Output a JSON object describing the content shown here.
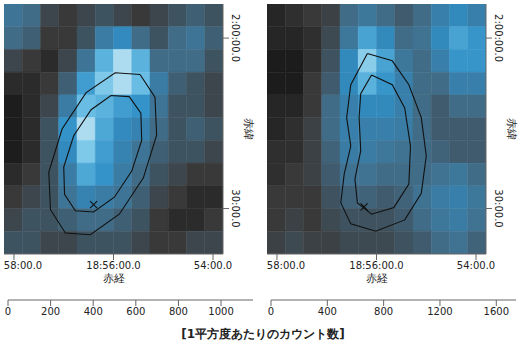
{
  "chart_data": [
    {
      "type": "heatmap",
      "x_label": "赤経",
      "y_label": "赤緯",
      "xlim": [
        3492,
        3228
      ],
      "xticks": [
        {
          "value": 3480,
          "label": "58:00.0"
        },
        {
          "value": 3360,
          "label": "18:56:00.0"
        },
        {
          "value": 3240,
          "label": "54:00.0"
        }
      ],
      "ylim": [
        82,
        126
      ],
      "yticks": [
        {
          "value": 120,
          "label": "2:00:00.0"
        },
        {
          "value": 90,
          "label": "30:00.0"
        }
      ],
      "x_edges": [
        3492,
        3470,
        3448,
        3426,
        3404,
        3382,
        3360,
        3338,
        3316,
        3294,
        3272,
        3250,
        3228
      ],
      "y_edges": [
        126,
        122,
        118,
        114,
        110,
        106,
        102,
        98,
        94,
        90,
        86,
        82
      ],
      "cells": [
        [
          450,
          400,
          250,
          200,
          250,
          300,
          250,
          200,
          250,
          300,
          350,
          300
        ],
        [
          400,
          350,
          200,
          200,
          300,
          500,
          600,
          400,
          300,
          400,
          450,
          350
        ],
        [
          250,
          200,
          150,
          250,
          450,
          800,
          1000,
          800,
          400,
          400,
          400,
          300
        ],
        [
          150,
          150,
          200,
          350,
          700,
          900,
          1000,
          850,
          500,
          350,
          300,
          250
        ],
        [
          100,
          150,
          250,
          500,
          850,
          800,
          700,
          650,
          450,
          300,
          300,
          250
        ],
        [
          100,
          150,
          300,
          650,
          1000,
          750,
          600,
          550,
          400,
          300,
          350,
          300
        ],
        [
          100,
          150,
          300,
          600,
          900,
          700,
          550,
          450,
          350,
          300,
          300,
          250
        ],
        [
          150,
          200,
          300,
          500,
          750,
          650,
          500,
          400,
          300,
          250,
          200,
          200
        ],
        [
          200,
          250,
          300,
          450,
          550,
          500,
          450,
          350,
          250,
          200,
          150,
          150
        ],
        [
          250,
          300,
          300,
          350,
          400,
          400,
          350,
          300,
          200,
          150,
          150,
          200
        ],
        [
          300,
          300,
          250,
          250,
          300,
          300,
          300,
          250,
          200,
          200,
          250,
          250
        ]
      ],
      "colorbar": {
        "range": [
          0,
          1150
        ],
        "ticks": [
          0,
          200,
          400,
          600,
          800,
          1000
        ]
      },
      "contours": [
        [
          [
            3328,
            113.6
          ],
          [
            3310,
            109.6
          ],
          [
            3308,
            102.9
          ],
          [
            3324,
            95.4
          ],
          [
            3353,
            89.0
          ],
          [
            3388,
            85.4
          ],
          [
            3418,
            85.7
          ],
          [
            3436,
            89.8
          ],
          [
            3438,
            96.4
          ],
          [
            3422,
            104.0
          ],
          [
            3393,
            110.4
          ],
          [
            3358,
            113.9
          ],
          [
            3328,
            113.6
          ]
        ],
        [
          [
            3341,
            109.7
          ],
          [
            3327,
            106.8
          ],
          [
            3326,
            102.0
          ],
          [
            3338,
            96.6
          ],
          [
            3359,
            92.0
          ],
          [
            3384,
            89.4
          ],
          [
            3406,
            89.6
          ],
          [
            3419,
            92.5
          ],
          [
            3420,
            97.3
          ],
          [
            3408,
            102.8
          ],
          [
            3387,
            107.4
          ],
          [
            3363,
            109.9
          ],
          [
            3341,
            109.7
          ]
        ]
      ],
      "markers": [
        {
          "x": 3384,
          "y": 90.7,
          "marker": "x"
        }
      ]
    },
    {
      "type": "heatmap",
      "x_label": "赤経",
      "y_label": "赤緯",
      "xlim": [
        3492,
        3228
      ],
      "xticks": [
        {
          "value": 3480,
          "label": "58:00.0"
        },
        {
          "value": 3360,
          "label": "18:56:00.0"
        },
        {
          "value": 3240,
          "label": "54:00.0"
        }
      ],
      "ylim": [
        82,
        126
      ],
      "yticks": [
        {
          "value": 120,
          "label": "2:00:00.0"
        },
        {
          "value": 90,
          "label": "30:00.0"
        }
      ],
      "x_edges": [
        3492,
        3470,
        3448,
        3426,
        3404,
        3382,
        3360,
        3338,
        3316,
        3294,
        3272,
        3250,
        3228
      ],
      "y_edges": [
        126,
        122,
        118,
        114,
        110,
        106,
        102,
        98,
        94,
        90,
        86,
        82
      ],
      "cells": [
        [
          200,
          250,
          300,
          350,
          600,
          700,
          600,
          500,
          600,
          800,
          900,
          800
        ],
        [
          200,
          200,
          250,
          400,
          700,
          1100,
          900,
          600,
          650,
          900,
          1100,
          1000
        ],
        [
          150,
          150,
          250,
          450,
          900,
          1400,
          1100,
          700,
          600,
          800,
          1000,
          1000
        ],
        [
          150,
          150,
          300,
          500,
          900,
          1200,
          1000,
          800,
          600,
          600,
          800,
          800
        ],
        [
          200,
          200,
          300,
          600,
          800,
          900,
          900,
          800,
          600,
          500,
          600,
          600
        ],
        [
          200,
          250,
          350,
          600,
          800,
          800,
          800,
          750,
          600,
          500,
          500,
          500
        ],
        [
          250,
          250,
          350,
          550,
          750,
          750,
          700,
          650,
          600,
          550,
          500,
          500
        ],
        [
          250,
          300,
          350,
          500,
          650,
          650,
          600,
          600,
          600,
          650,
          700,
          600
        ],
        [
          300,
          300,
          300,
          450,
          550,
          550,
          500,
          550,
          650,
          750,
          800,
          700
        ],
        [
          300,
          350,
          300,
          400,
          450,
          450,
          450,
          500,
          600,
          700,
          750,
          650
        ],
        [
          350,
          400,
          350,
          350,
          400,
          400,
          400,
          450,
          500,
          600,
          650,
          550
        ]
      ],
      "colorbar": {
        "range": [
          0,
          1740
        ],
        "ticks": [
          0,
          400,
          800,
          1200,
          1600
        ]
      },
      "contours": [
        [
          [
            3371,
            117.3
          ],
          [
            3341,
            116.0
          ],
          [
            3321,
            111.8
          ],
          [
            3306,
            106.0
          ],
          [
            3300,
            99.3
          ],
          [
            3306,
            92.7
          ],
          [
            3326,
            88.0
          ],
          [
            3361,
            86.0
          ],
          [
            3391,
            87.3
          ],
          [
            3403,
            91.0
          ],
          [
            3399,
            96.0
          ],
          [
            3391,
            101.0
          ],
          [
            3396,
            106.0
          ],
          [
            3391,
            111.8
          ],
          [
            3371,
            117.3
          ]
        ],
        [
          [
            3366,
            113.5
          ],
          [
            3341,
            111.8
          ],
          [
            3326,
            107.7
          ],
          [
            3319,
            101.0
          ],
          [
            3321,
            94.3
          ],
          [
            3339,
            90.2
          ],
          [
            3366,
            89.0
          ],
          [
            3383,
            91.0
          ],
          [
            3386,
            95.2
          ],
          [
            3379,
            100.2
          ],
          [
            3381,
            106.0
          ],
          [
            3379,
            110.2
          ],
          [
            3366,
            113.5
          ]
        ]
      ],
      "markers": [
        {
          "x": 3375,
          "y": 90.3,
          "marker": "x"
        }
      ]
    }
  ],
  "colorbar_label": "[1平方度あたりのカウント数]"
}
